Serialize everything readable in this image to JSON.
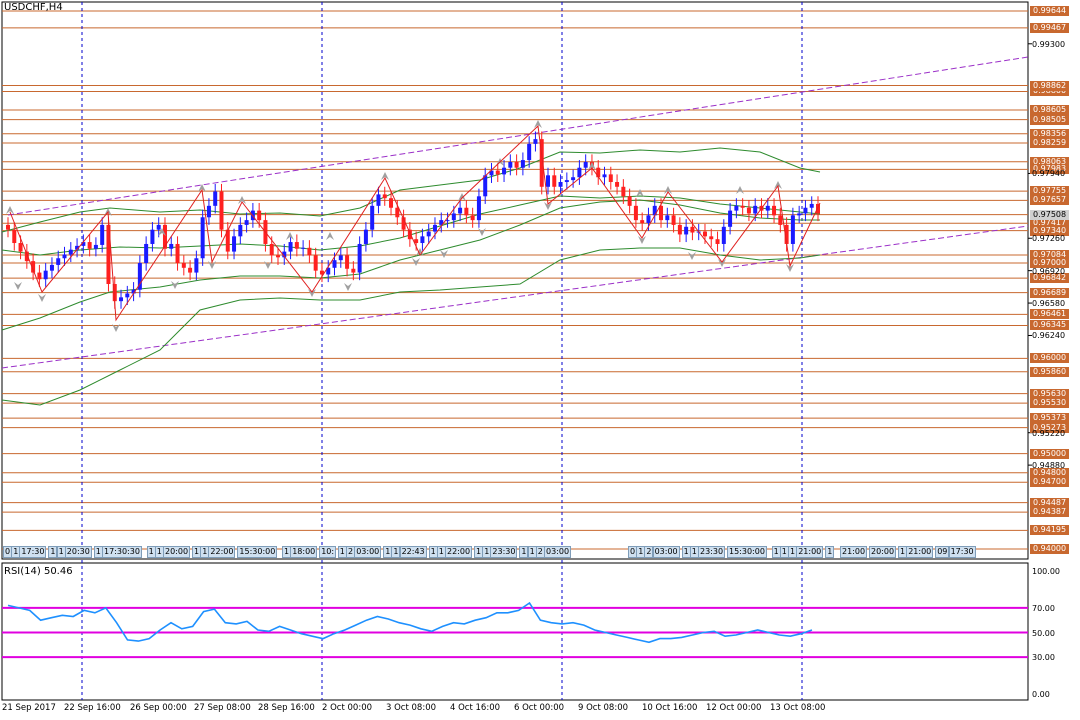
{
  "window": {
    "symbol_title": "USDCHF,H4"
  },
  "rsi": {
    "title": "RSI(14) 50.46",
    "levels": [
      "100.00",
      "70.00",
      "50.00",
      "30.00",
      "0.00"
    ]
  },
  "price_axis": {
    "highlighted": [
      "0.99644",
      "0.99467",
      "0.98800",
      "0.98862",
      "0.98605",
      "0.98505",
      "0.98356",
      "0.98259",
      "0.98063",
      "0.97983",
      "0.97755",
      "0.97657",
      "0.97508",
      "0.97417",
      "0.97340",
      "0.97084",
      "0.97000",
      "0.96842",
      "0.96689",
      "0.96461",
      "0.96345",
      "0.96000",
      "0.95860",
      "0.95630",
      "0.95530",
      "0.95373",
      "0.95273",
      "0.95000",
      "0.94800",
      "0.94700",
      "0.94487",
      "0.94387",
      "0.94195",
      "0.94000"
    ],
    "scale": [
      "0.99300",
      "0.97940",
      "0.97260",
      "0.96920",
      "0.96580",
      "0.96240",
      "0.95220",
      "0.94880"
    ],
    "current": "0.97508"
  },
  "time_axis": [
    "21 Sep 2017",
    "22 Sep 16:00",
    "26 Sep 00:00",
    "27 Sep 08:00",
    "28 Sep 16:00",
    "2 Oct 00:00",
    "3 Oct 08:00",
    "4 Oct 16:00",
    "6 Oct 00:00",
    "9 Oct 08:00",
    "10 Oct 16:00",
    "12 Oct 00:00",
    "13 Oct 08:00"
  ],
  "timestamp_tags": [
    "0",
    "1",
    "17:30",
    "1",
    "1",
    "20:30",
    "1",
    "17:30:30",
    "1",
    "1",
    "20:00",
    "1",
    "1",
    "22:00",
    "15:30:00",
    "1",
    "18:00",
    "10:",
    "1",
    "2",
    "03:00",
    "1",
    "1",
    "22:43",
    "1",
    "1",
    "22:00",
    "1",
    "1",
    "23:30",
    "1",
    "1",
    "2",
    "03:00",
    "0",
    "1",
    "2",
    "03:00",
    "1",
    "1",
    "23:30",
    "15:30:00",
    "1",
    "1",
    "1",
    "21:00",
    "1",
    "21:00",
    "20:00",
    "1",
    "21:00",
    "09",
    "17:30"
  ],
  "colors": {
    "bull": "#1a1aff",
    "bear": "#ff2020",
    "hline": "#c8682f",
    "channel": "#9b30c8",
    "bollinger": "#2e8b2e",
    "rsi": "#1e90ff",
    "rsi_level": "#e000e0",
    "fractal": "#a0a0a0"
  }
}
